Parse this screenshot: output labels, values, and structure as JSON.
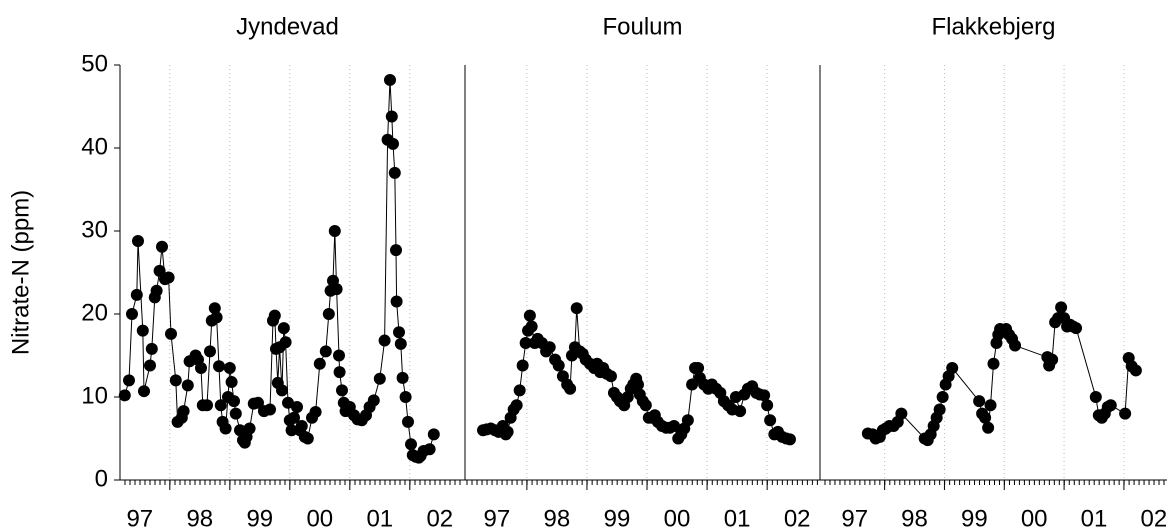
{
  "chart_data": [
    {
      "type": "line",
      "title": "Jyndevad",
      "ylabel": "Nitrate-N (ppm)",
      "color": "#000000",
      "xlim": [
        1997.17,
        2002.92
      ],
      "ylim": [
        0,
        50
      ],
      "yticks": [
        0,
        10,
        20,
        30,
        40,
        50
      ],
      "xticks": [
        {
          "value": 1997.5,
          "label": "97"
        },
        {
          "value": 1998.5,
          "label": "98"
        },
        {
          "value": 1999.5,
          "label": "99"
        },
        {
          "value": 2000.5,
          "label": "00"
        },
        {
          "value": 2001.5,
          "label": "01"
        },
        {
          "value": 2002.5,
          "label": "02"
        }
      ],
      "xgrid": [
        1998,
        1999,
        2000,
        2001,
        2002
      ],
      "xminor_step": 0.08333,
      "x": [
        1997.25,
        1997.32,
        1997.37,
        1997.45,
        1997.47,
        1997.55,
        1997.57,
        1997.67,
        1997.7,
        1997.75,
        1997.78,
        1997.83,
        1997.87,
        1997.92,
        1997.98,
        1998.02,
        1998.1,
        1998.13,
        1998.2,
        1998.23,
        1998.3,
        1998.33,
        1998.43,
        1998.47,
        1998.52,
        1998.55,
        1998.62,
        1998.67,
        1998.7,
        1998.75,
        1998.78,
        1998.82,
        1998.85,
        1998.88,
        1998.93,
        1998.97,
        1999.0,
        1999.03,
        1999.07,
        1999.1,
        1999.17,
        1999.22,
        1999.25,
        1999.28,
        1999.33,
        1999.4,
        1999.47,
        1999.57,
        1999.67,
        1999.72,
        1999.75,
        1999.77,
        1999.8,
        1999.83,
        1999.87,
        1999.9,
        1999.93,
        1999.97,
        2000.0,
        2000.03,
        2000.07,
        2000.12,
        2000.17,
        2000.2,
        2000.25,
        2000.3,
        2000.37,
        2000.43,
        2000.5,
        2000.6,
        2000.65,
        2000.68,
        2000.72,
        2000.75,
        2000.78,
        2000.82,
        2000.83,
        2000.87,
        2000.9,
        2000.93,
        2001.0,
        2001.07,
        2001.13,
        2001.2,
        2001.27,
        2001.33,
        2001.4,
        2001.5,
        2001.58,
        2001.63,
        2001.67,
        2001.7,
        2001.72,
        2001.75,
        2001.77,
        2001.78,
        2001.82,
        2001.85,
        2001.88,
        2001.93,
        2001.97,
        2002.02,
        2002.05,
        2002.1,
        2002.15,
        2002.18,
        2002.23,
        2002.33,
        2002.4
      ],
      "values": [
        10.2,
        12,
        20,
        22.3,
        28.8,
        18,
        10.7,
        13.8,
        15.8,
        22,
        22.8,
        25.2,
        28.1,
        24.2,
        24.4,
        17.6,
        12,
        7,
        7.5,
        8.3,
        11.4,
        14.3,
        15,
        14.5,
        13.5,
        9,
        9,
        15.5,
        19.2,
        20.7,
        19.6,
        13.7,
        9,
        7,
        6.2,
        10,
        13.5,
        11.8,
        9.5,
        8,
        6,
        4.8,
        4.5,
        5.2,
        6.2,
        9.2,
        9.3,
        8.3,
        8.5,
        19.2,
        19.8,
        15.8,
        11.7,
        16,
        10.8,
        18.3,
        16.6,
        9.3,
        7.2,
        6,
        7.5,
        8.8,
        6,
        6.5,
        5.2,
        5,
        7.5,
        8.2,
        14,
        15.5,
        20,
        22.8,
        24,
        30,
        23,
        15,
        13,
        10.8,
        9.3,
        8.3,
        8.8,
        7.8,
        7.3,
        7.2,
        7.8,
        8.8,
        9.6,
        12.2,
        16.8,
        41,
        48.2,
        43.8,
        40.5,
        37,
        27.7,
        21.5,
        17.8,
        16.4,
        12.3,
        10,
        7,
        4.3,
        3,
        2.8,
        2.7,
        2.9,
        3.5,
        3.7,
        5.5
      ]
    },
    {
      "type": "line",
      "title": "Foulum",
      "color": "#000000",
      "xlim": [
        1996.97,
        2002.88
      ],
      "ylim": [
        0,
        50
      ],
      "xticks": [
        {
          "value": 1997.5,
          "label": "97"
        },
        {
          "value": 1998.5,
          "label": "98"
        },
        {
          "value": 1999.5,
          "label": "99"
        },
        {
          "value": 2000.5,
          "label": "00"
        },
        {
          "value": 2001.5,
          "label": "01"
        },
        {
          "value": 2002.5,
          "label": "02"
        }
      ],
      "xgrid": [
        1998,
        1999,
        2000,
        2001,
        2002
      ],
      "xminor_step": 0.08333,
      "x": [
        1997.27,
        1997.33,
        1997.4,
        1997.47,
        1997.53,
        1997.6,
        1997.65,
        1997.68,
        1997.73,
        1997.78,
        1997.83,
        1997.88,
        1997.93,
        1997.98,
        1998.02,
        1998.05,
        1998.08,
        1998.13,
        1998.18,
        1998.25,
        1998.32,
        1998.38,
        1998.47,
        1998.53,
        1998.6,
        1998.67,
        1998.72,
        1998.75,
        1998.8,
        1998.83,
        1998.88,
        1998.93,
        1998.98,
        1999.05,
        1999.12,
        1999.17,
        1999.22,
        1999.27,
        1999.33,
        1999.4,
        1999.45,
        1999.5,
        1999.55,
        1999.62,
        1999.68,
        1999.73,
        1999.77,
        1999.82,
        1999.85,
        1999.88,
        1999.93,
        1999.98,
        2000.03,
        2000.08,
        2000.13,
        2000.18,
        2000.25,
        2000.32,
        2000.38,
        2000.45,
        2000.52,
        2000.57,
        2000.62,
        2000.68,
        2000.75,
        2000.8,
        2000.85,
        2000.88,
        2000.95,
        2001.02,
        2001.08,
        2001.15,
        2001.22,
        2001.28,
        2001.35,
        2001.42,
        2001.48,
        2001.55,
        2001.62,
        2001.68,
        2001.75,
        2001.82,
        2001.88,
        2001.95,
        2002.0,
        2002.05,
        2002.12,
        2002.18,
        2002.25,
        2002.32,
        2002.38
      ],
      "values": [
        6,
        6.1,
        6.2,
        6,
        5.8,
        6.5,
        5.5,
        5.8,
        7.5,
        8.5,
        9,
        10.8,
        13.8,
        16.5,
        18,
        19.8,
        18.5,
        16.5,
        17,
        16.5,
        15.5,
        16,
        14.5,
        13.8,
        12.5,
        11.5,
        11,
        15,
        16,
        20.7,
        15.5,
        15.2,
        14.5,
        14,
        13.5,
        14,
        13,
        13.5,
        12.8,
        12.5,
        10.5,
        10,
        9.5,
        9,
        10,
        11,
        11.5,
        12.2,
        11.5,
        10.3,
        9.5,
        9,
        7.5,
        7.5,
        7.8,
        7,
        6.5,
        6.3,
        6.3,
        6.5,
        5,
        5.5,
        6.2,
        7.2,
        11.5,
        13.5,
        13.5,
        12.3,
        11.5,
        11,
        11.5,
        11,
        10.5,
        9.5,
        9,
        8.5,
        10,
        8.3,
        10.3,
        11,
        11.3,
        10.5,
        10.3,
        10.2,
        9,
        7.2,
        5.5,
        5.8,
        5.2,
        5,
        4.9
      ]
    },
    {
      "type": "line",
      "title": "Flakkebjerg",
      "color": "#000000",
      "xlim": [
        1996.92,
        2002.72
      ],
      "ylim": [
        0,
        50
      ],
      "xticks": [
        {
          "value": 1997.5,
          "label": "97"
        },
        {
          "value": 1998.5,
          "label": "98"
        },
        {
          "value": 1999.5,
          "label": "99"
        },
        {
          "value": 2000.5,
          "label": "00"
        },
        {
          "value": 2001.5,
          "label": "01"
        },
        {
          "value": 2002.5,
          "label": "02"
        }
      ],
      "xgrid": [
        1998,
        1999,
        2000,
        2001,
        2002
      ],
      "xminor_step": 0.08333,
      "x": [
        1997.72,
        1997.8,
        1997.85,
        1997.92,
        1997.97,
        1998.02,
        1998.08,
        1998.15,
        1998.22,
        1998.28,
        1998.67,
        1998.72,
        1998.77,
        1998.82,
        1998.87,
        1998.92,
        1998.97,
        1999.02,
        1999.07,
        1999.13,
        1999.58,
        1999.63,
        1999.68,
        1999.73,
        1999.77,
        1999.82,
        1999.87,
        1999.9,
        1999.93,
        1999.98,
        2000.03,
        2000.08,
        2000.13,
        2000.18,
        2000.72,
        2000.75,
        2000.8,
        2000.85,
        2000.9,
        2000.95,
        2001.0,
        2001.05,
        2001.1,
        2001.15,
        2001.2,
        2001.53,
        2001.58,
        2001.63,
        2001.68,
        2001.73,
        2001.78,
        2002.02,
        2002.08,
        2002.13,
        2002.2
      ],
      "values": [
        5.6,
        5.5,
        5,
        5.2,
        6,
        6.2,
        6.5,
        6.5,
        7,
        8,
        5,
        4.8,
        5.5,
        6.5,
        7.5,
        8.5,
        10,
        11.5,
        12.5,
        13.5,
        9.5,
        8,
        7.5,
        6.3,
        9,
        14,
        16.5,
        17.5,
        18.2,
        18,
        18.2,
        17.5,
        17,
        16.2,
        14.8,
        13.8,
        14.5,
        19,
        19.5,
        20.8,
        19.5,
        18.5,
        18.7,
        18.5,
        18.3,
        10,
        7.8,
        7.5,
        8,
        8.8,
        9,
        8,
        14.7,
        13.7,
        13.2
      ]
    }
  ]
}
